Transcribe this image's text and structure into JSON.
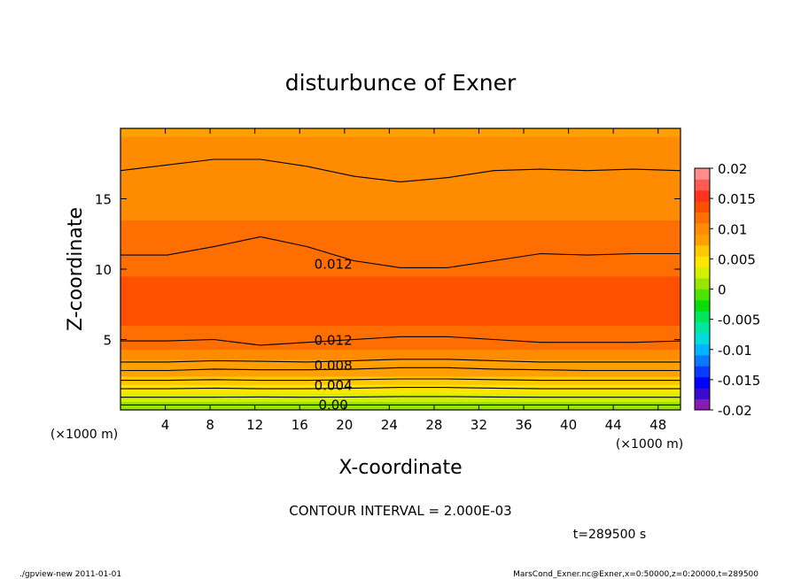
{
  "chart_data": {
    "type": "heatmap",
    "title": "disturbunce of Exner",
    "xlabel": "X-coordinate",
    "ylabel": "Z-coordinate",
    "x_unit_left": "(×1000 m)",
    "x_unit_right": "(×1000 m)",
    "xlim": [
      0,
      50
    ],
    "ylim": [
      0,
      20
    ],
    "x_ticks": [
      4,
      8,
      12,
      16,
      20,
      24,
      28,
      32,
      36,
      40,
      44,
      48
    ],
    "y_ticks": [
      5,
      10,
      15
    ],
    "colorbar": {
      "ticks": [
        "0.02",
        "0.015",
        "0.01",
        "0.005",
        "0",
        "-0.005",
        "-0.01",
        "-0.015",
        "-0.02"
      ],
      "range": [
        -0.02,
        0.02
      ],
      "colors": [
        "#8a1ab0",
        "#3a0ad0",
        "#0000ff",
        "#0a3cff",
        "#0a78ff",
        "#00b4ff",
        "#00dcdc",
        "#00e6a0",
        "#00e65a",
        "#0adc0a",
        "#4be600",
        "#96e600",
        "#d2f000",
        "#ffe600",
        "#ffc800",
        "#ffa000",
        "#ff8c00",
        "#ff6e00",
        "#ff5000",
        "#ff321e",
        "#ff5a50",
        "#ff8c8c"
      ]
    },
    "contour_labels": [
      "0.012",
      "0.012",
      "0.008",
      "0.004",
      "0.00"
    ],
    "contour_interval_text": "CONTOUR INTERVAL = 2.000E-03",
    "time_text": "t=289500 s",
    "footer_left": "./gpview-new  2011-01-01",
    "footer_right": "MarsCond_Exner.nc@Exner,x=0:50000,z=0:20000,t=289500",
    "bands": [
      {
        "z": 0.0,
        "value": 0.0005
      },
      {
        "z": 0.6,
        "value": 0.0025
      },
      {
        "z": 1.2,
        "value": 0.0045
      },
      {
        "z": 1.8,
        "value": 0.006
      },
      {
        "z": 2.4,
        "value": 0.0075
      },
      {
        "z": 3.0,
        "value": 0.009
      },
      {
        "z": 3.6,
        "value": 0.0105
      },
      {
        "z": 4.3,
        "value": 0.0115
      },
      {
        "z": 5.0,
        "value": 0.0125
      },
      {
        "z": 6.0,
        "value": 0.0135
      },
      {
        "z": 9.5,
        "value": 0.0125
      },
      {
        "z": 11.0,
        "value": 0.0115
      },
      {
        "z": 13.5,
        "value": 0.0105
      },
      {
        "z": 17.0,
        "value": 0.0095
      },
      {
        "z": 19.4,
        "value": 0.0085
      }
    ],
    "contours": [
      {
        "label": "",
        "z": [
          0.35,
          0.35,
          0.35,
          0.35,
          0.35,
          0.35,
          0.35,
          0.35,
          0.35,
          0.35,
          0.35,
          0.35,
          0.35
        ]
      },
      {
        "label": "",
        "z": [
          0.9,
          0.9,
          0.9,
          0.92,
          0.9,
          0.92,
          0.95,
          0.95,
          0.92,
          0.9,
          0.9,
          0.9,
          0.9
        ]
      },
      {
        "label": "",
        "z": [
          1.5,
          1.5,
          1.55,
          1.5,
          1.5,
          1.55,
          1.6,
          1.6,
          1.55,
          1.5,
          1.5,
          1.5,
          1.5
        ]
      },
      {
        "label": "",
        "z": [
          2.1,
          2.1,
          2.15,
          2.1,
          2.1,
          2.15,
          2.2,
          2.2,
          2.15,
          2.1,
          2.1,
          2.1,
          2.1
        ]
      },
      {
        "label": "",
        "z": [
          2.8,
          2.8,
          2.9,
          2.85,
          2.85,
          2.9,
          3.0,
          3.0,
          2.9,
          2.85,
          2.8,
          2.8,
          2.8
        ]
      },
      {
        "label": "",
        "z": [
          3.4,
          3.4,
          3.5,
          3.45,
          3.4,
          3.5,
          3.6,
          3.6,
          3.5,
          3.4,
          3.4,
          3.4,
          3.4
        ]
      },
      {
        "label": "",
        "z": [
          4.9,
          4.9,
          5.0,
          4.6,
          4.8,
          5.0,
          5.2,
          5.2,
          5.0,
          4.8,
          4.8,
          4.8,
          4.9
        ]
      },
      {
        "label": "",
        "z": [
          11.0,
          11.0,
          11.6,
          12.3,
          11.6,
          10.6,
          10.1,
          10.1,
          10.6,
          11.1,
          11.0,
          11.1,
          11.1
        ]
      },
      {
        "label": "",
        "z": [
          17.0,
          17.4,
          17.8,
          17.8,
          17.3,
          16.6,
          16.2,
          16.5,
          17.0,
          17.1,
          17.0,
          17.1,
          17.0
        ]
      }
    ]
  }
}
